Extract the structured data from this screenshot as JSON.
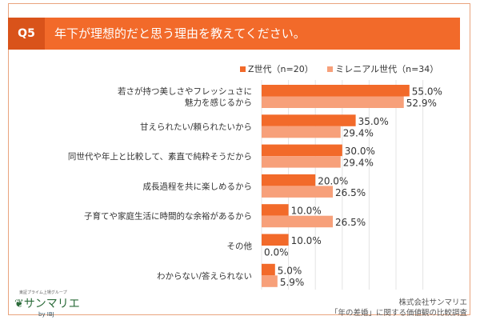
{
  "header": {
    "q": "Q5",
    "title": "年下が理想的だと思う理由を教えてください。"
  },
  "footer": {
    "company": "株式会社サンマリエ",
    "survey": "「年の差婚」に関する価値観の比較調査",
    "logo_tag": "東証プライム上場グループ",
    "logo": "サンマリエ",
    "logo_by": "by IBJ"
  },
  "chart_data": {
    "type": "bar",
    "orientation": "horizontal",
    "xlim": [
      0,
      60
    ],
    "grid": true,
    "legend": "top-right",
    "categories": [
      [
        "若さが持つ美しさやフレッシュさに",
        "魅力を感じるから"
      ],
      [
        "甘えられたい/頼られたいから"
      ],
      [
        "同世代や年上と比較して、素直で純粋そうだから"
      ],
      [
        "成長過程を共に楽しめるから"
      ],
      [
        "子育てや家庭生活に時間的な余裕があるから"
      ],
      [
        "その他"
      ],
      [
        "わからない/答えられない"
      ]
    ],
    "series": [
      {
        "name": "Z世代（n=20）",
        "color": "#f26a2a",
        "values": [
          55.0,
          35.0,
          30.0,
          20.0,
          10.0,
          10.0,
          5.0
        ],
        "labels": [
          "55.0%",
          "35.0%",
          "30.0%",
          "20.0%",
          "10.0%",
          "10.0%",
          "5.0%"
        ]
      },
      {
        "name": "ミレニアル世代（n=34）",
        "color": "#f7a07a",
        "values": [
          52.9,
          29.4,
          29.4,
          26.5,
          26.5,
          0.0,
          5.9
        ],
        "labels": [
          "52.9%",
          "29.4%",
          "29.4%",
          "26.5%",
          "26.5%",
          "0.0%",
          "5.9%"
        ]
      }
    ]
  }
}
